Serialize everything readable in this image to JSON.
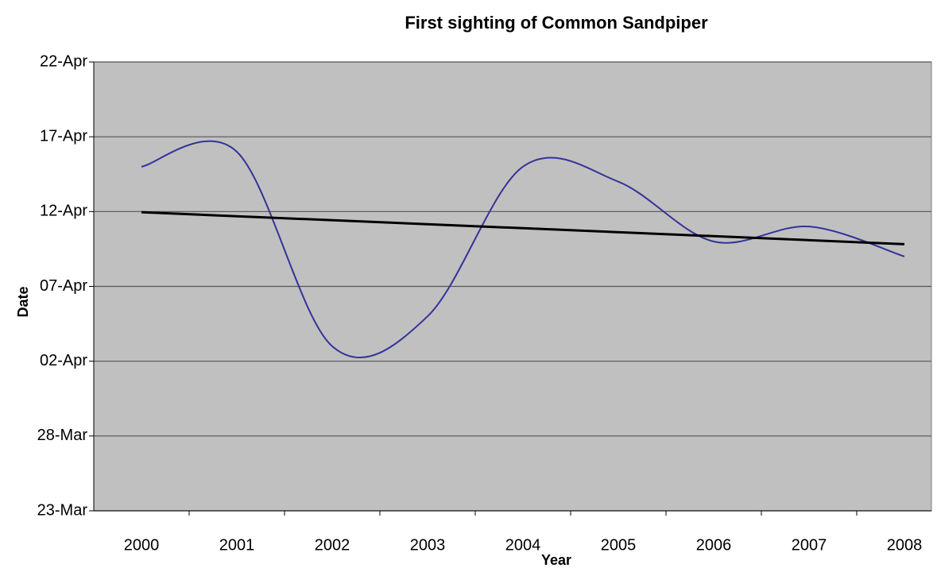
{
  "chart_data": {
    "type": "line",
    "title": "First sighting of Common Sandpiper",
    "x_label": "Year",
    "y_label": "Date",
    "categories": [
      "2000",
      "2001",
      "2002",
      "2003",
      "2004",
      "2005",
      "2006",
      "2007",
      "2008"
    ],
    "series": [
      {
        "color": "#333399",
        "values": [
          105,
          106,
          93,
          95,
          105,
          104,
          100,
          101,
          99
        ]
      }
    ],
    "trendline": true,
    "trendline_color": "#000000",
    "ylim": [
      82,
      112
    ],
    "yticks": [
      {
        "value": 82,
        "label": "23-Mar"
      },
      {
        "value": 87,
        "label": "28-Mar"
      },
      {
        "value": 92,
        "label": "02-Apr"
      },
      {
        "value": 97,
        "label": "07-Apr"
      },
      {
        "value": 102,
        "label": "12-Apr"
      },
      {
        "value": 107,
        "label": "17-Apr"
      },
      {
        "value": 112,
        "label": "22-Apr"
      }
    ],
    "grid": true,
    "plot_background": "#c0c0c0"
  }
}
